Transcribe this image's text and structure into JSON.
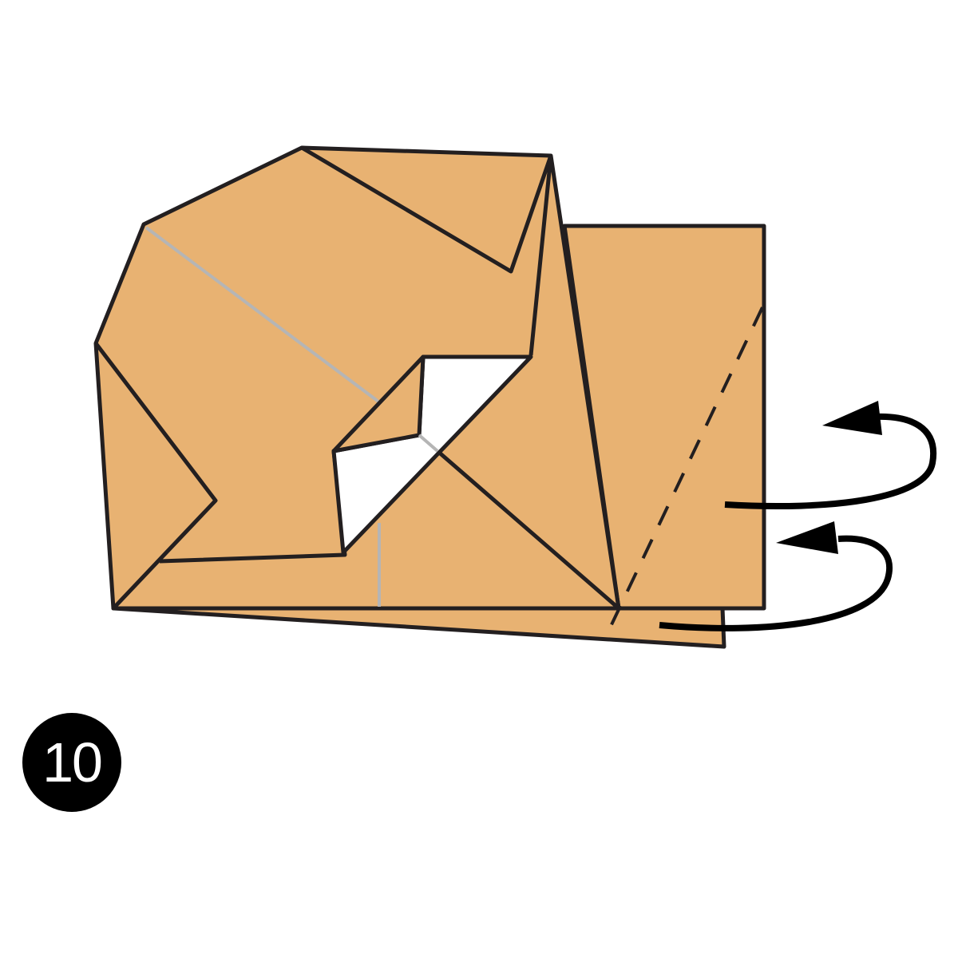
{
  "step": {
    "number": "10"
  },
  "colors": {
    "paper": "#E8B272",
    "outline": "#231F20",
    "crease": "#B5B5B5",
    "hole": "#FFFFFF",
    "badge_background": "#000000",
    "badge_text": "#FFFFFF"
  },
  "icons": {
    "fold": "valley-fold-dashed-line",
    "arrows": "fold-behind-arrow"
  }
}
